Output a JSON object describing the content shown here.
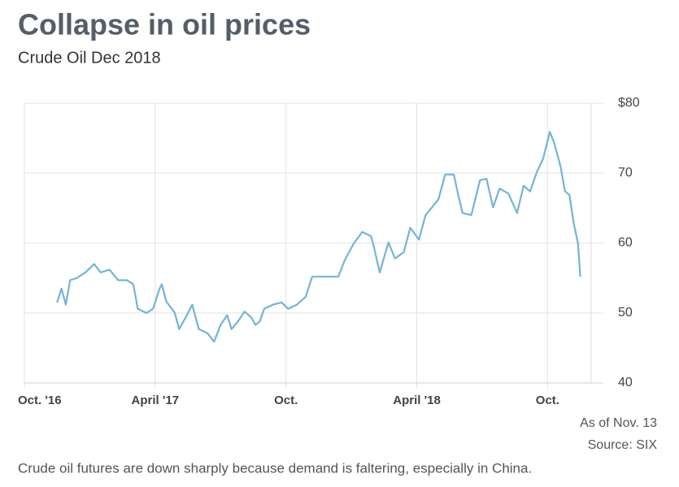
{
  "chart_data": {
    "type": "line",
    "title": "Collapse in oil prices",
    "subtitle": "Crude Oil Dec 2018",
    "annotations": [
      "As of Nov. 13",
      "Source: SIX"
    ],
    "caption": "Crude oil futures are down sharply because demand is faltering, especially in China.",
    "grid": true,
    "xlim": [
      0,
      26
    ],
    "xticks": [
      {
        "value": 0,
        "label": "Oct. '16"
      },
      {
        "value": 6,
        "label": "April '17"
      },
      {
        "value": 12,
        "label": "Oct."
      },
      {
        "value": 18,
        "label": "April '18"
      },
      {
        "value": 24,
        "label": "Oct."
      }
    ],
    "ylim": [
      40,
      80
    ],
    "yticks": [
      40,
      50,
      60,
      70,
      {
        "value": 80,
        "label": "$80"
      }
    ],
    "x": [
      1.5,
      1.7,
      1.9,
      2.1,
      2.4,
      2.8,
      3.2,
      3.5,
      3.9,
      4.3,
      4.7,
      5.0,
      5.2,
      5.6,
      5.9,
      6.2,
      6.3,
      6.5,
      6.9,
      7.1,
      7.4,
      7.7,
      8.0,
      8.4,
      8.7,
      9.0,
      9.3,
      9.5,
      9.8,
      10.1,
      10.4,
      10.6,
      10.8,
      11.0,
      11.4,
      11.8,
      12.1,
      12.5,
      12.9,
      13.2,
      13.6,
      14.0,
      14.4,
      14.7,
      15.1,
      15.5,
      15.9,
      16.0,
      16.3,
      16.7,
      17.0,
      17.4,
      17.7,
      18.1,
      18.4,
      18.7,
      19.0,
      19.3,
      19.7,
      19.9,
      20.1,
      20.5,
      20.9,
      21.2,
      21.5,
      21.8,
      22.2,
      22.6,
      22.9,
      23.2,
      23.5,
      23.8,
      24.1,
      24.3,
      24.6,
      24.8,
      25.0,
      25.2,
      25.4,
      25.5
    ],
    "series": [
      {
        "name": "Crude Oil Dec 2018",
        "color": "#74b4d6",
        "values": [
          51.5,
          53.5,
          51.2,
          54.7,
          55.0,
          55.8,
          57.0,
          55.8,
          56.2,
          54.7,
          54.7,
          54.1,
          50.6,
          50.0,
          50.6,
          53.5,
          54.1,
          51.7,
          50.0,
          47.7,
          49.4,
          51.2,
          47.7,
          47.1,
          45.9,
          48.3,
          49.7,
          47.7,
          48.8,
          50.2,
          49.4,
          48.3,
          48.8,
          50.6,
          51.2,
          51.5,
          50.6,
          51.2,
          52.3,
          55.2,
          55.2,
          55.2,
          55.2,
          57.6,
          59.9,
          61.6,
          61.0,
          59.9,
          55.8,
          60.1,
          57.8,
          58.7,
          62.2,
          60.5,
          64.0,
          65.1,
          66.3,
          69.8,
          69.8,
          66.9,
          64.3,
          64.0,
          69.0,
          69.2,
          65.1,
          67.8,
          67.1,
          64.3,
          68.2,
          67.4,
          70.1,
          72.1,
          75.9,
          74.4,
          70.9,
          67.4,
          66.9,
          62.8,
          59.9,
          55.2
        ]
      }
    ]
  }
}
